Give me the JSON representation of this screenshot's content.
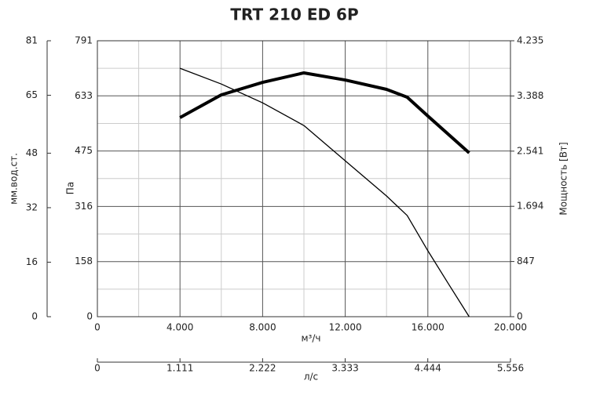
{
  "chart_data": {
    "type": "line",
    "title": "TRT 210 ED 6P",
    "xlabel": "м³/ч",
    "xlim": [
      0,
      20000
    ],
    "xticks": [
      0,
      {
        "value": 4000,
        "label": "4.000"
      },
      {
        "value": 8000,
        "label": "8.000"
      },
      {
        "value": 12000,
        "label": "12.000"
      },
      {
        "value": 16000,
        "label": "16.000"
      },
      {
        "value": 20000,
        "label": "20.000"
      }
    ],
    "xminorticks": [
      2000,
      6000,
      10000,
      14000,
      18000
    ],
    "x2label": "л/с",
    "x2lim": [
      0,
      5.556
    ],
    "x2ticks": [
      0,
      1.111,
      2.222,
      3.333,
      4.444,
      5.556
    ],
    "ylabel": "Па",
    "ylim": [
      0,
      791
    ],
    "yticks": [
      0,
      158,
      316,
      475,
      633,
      791
    ],
    "yminorticks": [
      79,
      237,
      396,
      554,
      712
    ],
    "y3label": "мм.вод.ст.",
    "y3lim": [
      0,
      81
    ],
    "y3ticks": [
      0,
      16,
      32,
      48,
      65,
      81
    ],
    "y2label": "Мощность [Вт]",
    "y2lim": [
      0,
      4235
    ],
    "y2ticks": [
      0,
      847,
      {
        "value": 1694,
        "label": "1.694"
      },
      {
        "value": 2541,
        "label": "2.541"
      },
      {
        "value": 3388,
        "label": "3.388"
      },
      {
        "value": 4235,
        "label": "4.235"
      }
    ],
    "grid": true,
    "series": [
      {
        "color": "#000000",
        "width": 1.3,
        "x": [
          4000,
          6000,
          8000,
          10000,
          12000,
          14000,
          15000,
          16000,
          17000,
          18000
        ],
        "values": [
          712,
          667,
          613,
          548,
          447,
          346,
          290,
          189,
          94,
          0
        ]
      },
      {
        "color": "#000000",
        "width": 4,
        "axis": "y2",
        "x": [
          4000,
          6000,
          8000,
          10000,
          12000,
          14000,
          15000,
          16000,
          18000
        ],
        "values": [
          3056,
          3405,
          3597,
          3742,
          3633,
          3489,
          3369,
          3080,
          2515
        ]
      }
    ]
  }
}
